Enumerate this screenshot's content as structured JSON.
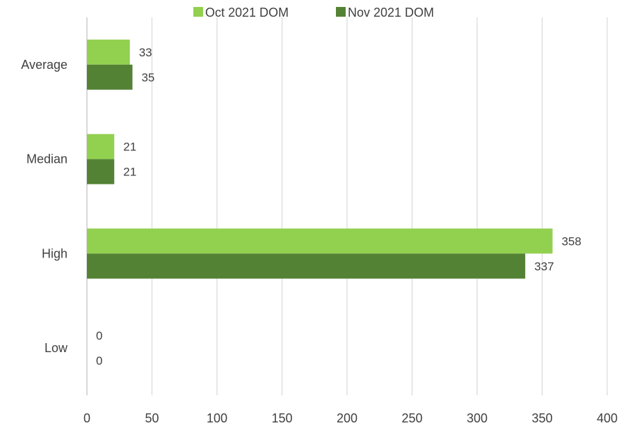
{
  "chart_data": {
    "type": "bar",
    "orientation": "horizontal",
    "categories": [
      "Average",
      "Median",
      "High",
      "Low"
    ],
    "series": [
      {
        "name": "Oct 2021 DOM",
        "values": [
          33,
          21,
          358,
          0
        ],
        "color": "#92d050"
      },
      {
        "name": "Nov 2021 DOM",
        "values": [
          35,
          21,
          337,
          0
        ],
        "color": "#548235"
      }
    ],
    "xlim": [
      0,
      400
    ],
    "x_ticks": [
      0,
      50,
      100,
      150,
      200,
      250,
      300,
      350,
      400
    ],
    "grid": true,
    "legend_position": "top",
    "data_labels": true
  }
}
